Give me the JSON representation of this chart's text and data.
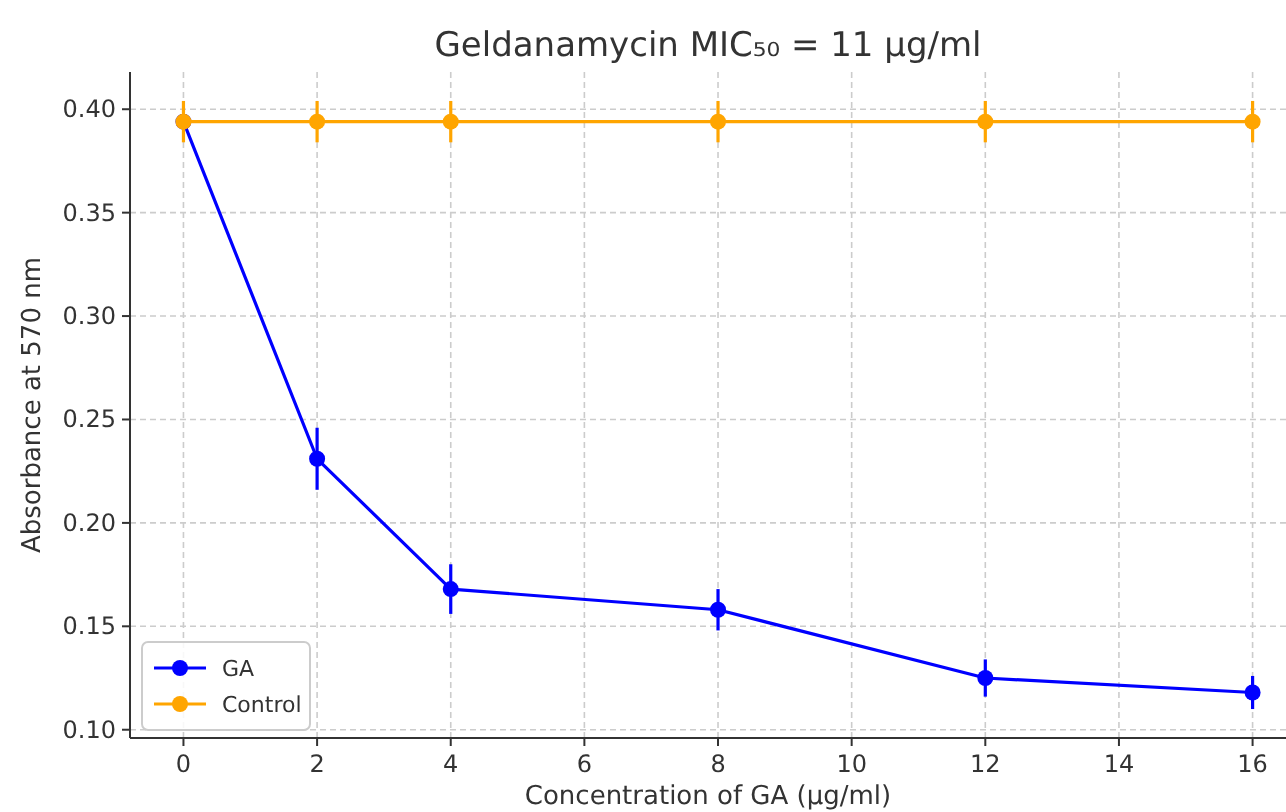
{
  "chart_data": {
    "type": "line",
    "title": "Geldanamycin MIC₅₀ = 11 µg/ml",
    "xlabel": "Concentration of GA (µg/ml)",
    "ylabel": "Absorbance at 570 nm",
    "x": [
      0,
      2,
      4,
      8,
      12,
      16
    ],
    "series": [
      {
        "name": "GA",
        "color": "#0000ff",
        "values": [
          0.394,
          0.231,
          0.168,
          0.158,
          0.125,
          0.118
        ],
        "errors": [
          null,
          0.015,
          0.012,
          0.01,
          0.009,
          0.008
        ]
      },
      {
        "name": "Control",
        "color": "#ffa500",
        "values": [
          0.394,
          0.394,
          0.394,
          0.394,
          0.394,
          0.394
        ],
        "errors": [
          0.01,
          0.01,
          0.01,
          0.01,
          0.01,
          0.01
        ]
      }
    ],
    "xlim": [
      -0.8,
      16.5
    ],
    "ylim": [
      0.096,
      0.418
    ],
    "xticks": [
      0,
      2,
      4,
      6,
      8,
      10,
      12,
      14,
      16
    ],
    "yticks": [
      {
        "value": 0.1,
        "label": "0.10"
      },
      {
        "value": 0.15,
        "label": "0.15"
      },
      {
        "value": 0.2,
        "label": "0.20"
      },
      {
        "value": 0.25,
        "label": "0.25"
      },
      {
        "value": 0.3,
        "label": "0.30"
      },
      {
        "value": 0.35,
        "label": "0.35"
      },
      {
        "value": 0.4,
        "label": "0.40"
      }
    ],
    "grid": true,
    "legend": "bottom left",
    "marker": "circle",
    "line_style": "solid"
  }
}
